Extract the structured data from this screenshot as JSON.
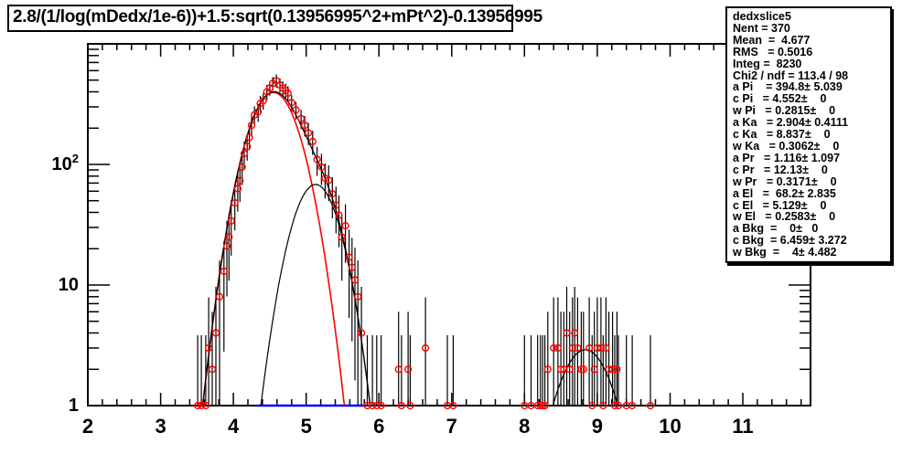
{
  "title": {
    "text": "2.8/(1/log(mDedx/1e-6))+1.5:sqrt(0.13956995^2+mPt^2)-0.13956995"
  },
  "stats_box": {
    "histogram_name": "dedxslice5",
    "lines": [
      "dedxslice5",
      "Nent = 370",
      "Mean  =  4.677",
      "RMS   = 0.5016",
      "Integ =  8230",
      "Chi2 / ndf = 113.4 / 98",
      "a Pi    = 394.8± 5.039",
      "c Pi   = 4.552±    0",
      "w Pi   = 0.2815±    0",
      "a Ka   = 2.904± 0.4111",
      "c Ka   = 8.837±    0",
      "w Ka   = 0.3062±    0",
      "a Pr   = 1.116± 1.097",
      "c Pr   = 12.13±    0",
      "w Pr   = 0.3171±    0",
      "a El   =  68.2± 2.835",
      "c El   = 5.129±    0",
      "w El   = 0.2583±    0",
      "a Bkg  =    0±   0",
      "c Bkg  = 6.459± 3.272",
      "w Bkg  =    4± 4.482"
    ]
  },
  "chart_data": {
    "type": "scatter",
    "title": "2.8/(1/log(mDedx/1e-6))+1.5:sqrt(0.13956995^2+mPt^2)-0.13956995",
    "xlabel": "",
    "ylabel": "",
    "x_axis": {
      "min": 2,
      "max": 11.93,
      "major_ticks": [
        2,
        3,
        4,
        5,
        6,
        7,
        8,
        9,
        10,
        11
      ],
      "minor_step": 0.2
    },
    "y_axis": {
      "scale": "log",
      "min": 1,
      "max": 1000,
      "major_ticks": [
        1,
        10,
        100
      ],
      "tick_labels": [
        "1",
        "10",
        "10^2"
      ]
    },
    "marker": {
      "shape": "open-circle",
      "color": "#ff0000"
    },
    "error_bars": {
      "color": "#000000",
      "model": "approx sqrt(8*y), clipped at y=1"
    },
    "points": [
      [
        3.51,
        1
      ],
      [
        3.56,
        1
      ],
      [
        3.62,
        1
      ],
      [
        3.66,
        3
      ],
      [
        3.71,
        2
      ],
      [
        3.76,
        4
      ],
      [
        3.81,
        8
      ],
      [
        3.87,
        13
      ],
      [
        3.91,
        21
      ],
      [
        3.94,
        25
      ],
      [
        3.97,
        34
      ],
      [
        4.02,
        48
      ],
      [
        4.06,
        63
      ],
      [
        4.09,
        73
      ],
      [
        4.12,
        95
      ],
      [
        4.15,
        123
      ],
      [
        4.19,
        141
      ],
      [
        4.22,
        168
      ],
      [
        4.25,
        211
      ],
      [
        4.29,
        258
      ],
      [
        4.34,
        272
      ],
      [
        4.37,
        320
      ],
      [
        4.41,
        336
      ],
      [
        4.46,
        400
      ],
      [
        4.5,
        430
      ],
      [
        4.54,
        470
      ],
      [
        4.59,
        495
      ],
      [
        4.64,
        455
      ],
      [
        4.68,
        430
      ],
      [
        4.72,
        410
      ],
      [
        4.75,
        390
      ],
      [
        4.8,
        325
      ],
      [
        4.86,
        283
      ],
      [
        4.93,
        240
      ],
      [
        4.98,
        211
      ],
      [
        5.03,
        183
      ],
      [
        5.09,
        155
      ],
      [
        5.15,
        110
      ],
      [
        5.21,
        95
      ],
      [
        5.26,
        77
      ],
      [
        5.31,
        74
      ],
      [
        5.36,
        57
      ],
      [
        5.41,
        46
      ],
      [
        5.45,
        38
      ],
      [
        5.49,
        25
      ],
      [
        5.54,
        31
      ],
      [
        5.59,
        17
      ],
      [
        5.63,
        14
      ],
      [
        5.67,
        11
      ],
      [
        5.71,
        8
      ],
      [
        5.76,
        4
      ],
      [
        5.84,
        1
      ],
      [
        5.91,
        1
      ],
      [
        5.97,
        1
      ],
      [
        6.03,
        1
      ],
      [
        6.27,
        2
      ],
      [
        6.31,
        1
      ],
      [
        6.4,
        2
      ],
      [
        6.43,
        1
      ],
      [
        6.64,
        3
      ],
      [
        6.94,
        1
      ],
      [
        7.02,
        1
      ],
      [
        8.0,
        1
      ],
      [
        8.09,
        1
      ],
      [
        8.18,
        1
      ],
      [
        8.22,
        1
      ],
      [
        8.25,
        1
      ],
      [
        8.28,
        1
      ],
      [
        8.32,
        2
      ],
      [
        8.4,
        3
      ],
      [
        8.46,
        3
      ],
      [
        8.5,
        2
      ],
      [
        8.54,
        2
      ],
      [
        8.58,
        4
      ],
      [
        8.62,
        2
      ],
      [
        8.66,
        3
      ],
      [
        8.69,
        4
      ],
      [
        8.73,
        3
      ],
      [
        8.78,
        2
      ],
      [
        8.81,
        2
      ],
      [
        8.89,
        3
      ],
      [
        8.93,
        1
      ],
      [
        8.96,
        2
      ],
      [
        9.0,
        3
      ],
      [
        9.05,
        3
      ],
      [
        9.08,
        1
      ],
      [
        9.12,
        3
      ],
      [
        9.16,
        2
      ],
      [
        9.21,
        2
      ],
      [
        9.24,
        1
      ],
      [
        9.27,
        2
      ],
      [
        9.29,
        1
      ],
      [
        9.4,
        1
      ],
      [
        9.48,
        1
      ],
      [
        9.73,
        1
      ]
    ],
    "fits": {
      "pion": {
        "amplitude": 394.8,
        "center": 4.552,
        "width": 0.2815,
        "color": "#ff0000"
      },
      "electron": {
        "amplitude": 68.2,
        "center": 5.129,
        "width": 0.2583,
        "color": "#000000"
      },
      "kaon": {
        "amplitude": 2.904,
        "center": 8.837,
        "width": 0.3062,
        "color": "#000000"
      },
      "proton": {
        "amplitude": 1.116,
        "center": 12.13,
        "width": 0.3171,
        "color": "#000000"
      },
      "total": {
        "color": "#000000"
      }
    },
    "background_segment_clipped_at_ymin": {
      "x1": 4.33,
      "x2": 5.79,
      "color": "#0000ff"
    },
    "legend": "none",
    "grid": false
  }
}
